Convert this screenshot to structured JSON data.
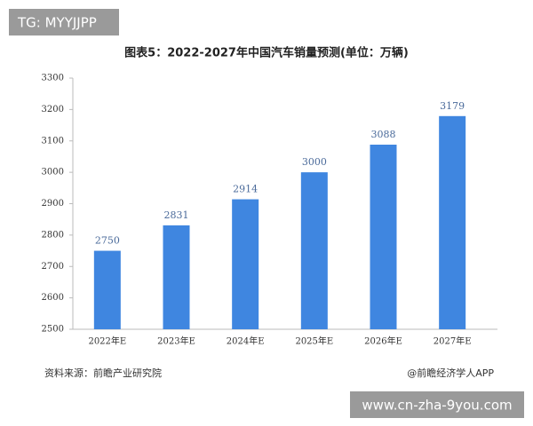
{
  "top_badge": "TG: MYYJJPP",
  "bottom_badge": "www.cn-zha-9you.com",
  "source": "资料来源：前瞻产业研究院",
  "credit": "@前瞻经济学人APP",
  "chart_data": {
    "type": "bar",
    "title": "图表5：2022-2027年中国汽车销量预测(单位：万辆)",
    "categories": [
      "2022年E",
      "2023年E",
      "2024年E",
      "2025年E",
      "2026年E",
      "2027年E"
    ],
    "values": [
      2750,
      2831,
      2914,
      3000,
      3088,
      3179
    ],
    "color": "#3f86e0",
    "ylim": [
      2500,
      3300
    ],
    "yticks": [
      2500,
      2600,
      2700,
      2800,
      2900,
      3000,
      3100,
      3200,
      3300
    ],
    "grid": false
  }
}
